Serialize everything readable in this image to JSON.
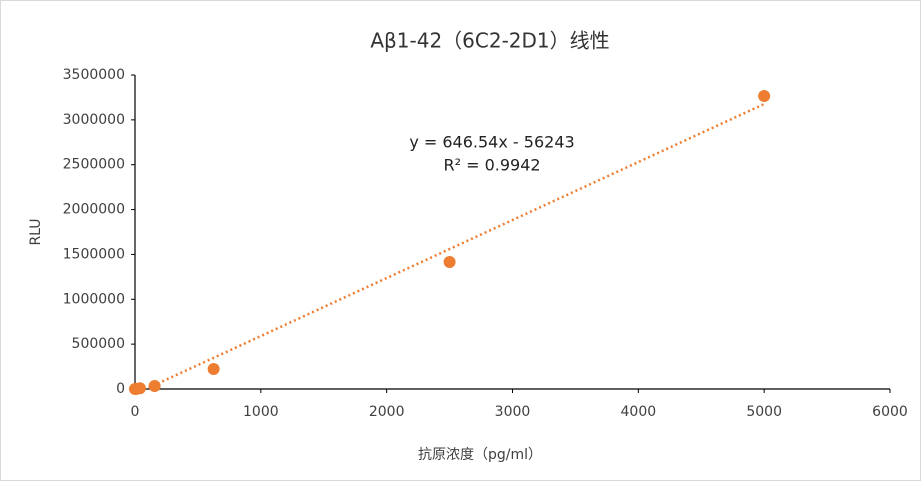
{
  "chart_data": {
    "type": "scatter",
    "title": "Aβ1-42（6C2-2D1）线性",
    "x_label": "抗原浓度（pg/ml）",
    "y_label": "RLU",
    "series": [
      {
        "name": "RLU",
        "color": "#ed7d31",
        "x": [
          0,
          9.8,
          39,
          156,
          625,
          2500,
          5000
        ],
        "values": [
          0,
          2000,
          8000,
          33000,
          223000,
          1416000,
          3266000
        ]
      }
    ],
    "xlim": [
      0,
      6000
    ],
    "xticks": [
      0,
      1000,
      2000,
      3000,
      4000,
      5000,
      6000
    ],
    "ylim": [
      0,
      3500000
    ],
    "yticks": [
      0,
      500000,
      1000000,
      1500000,
      2000000,
      2500000,
      3000000,
      3500000
    ],
    "grid": false,
    "trendline": {
      "slope": 646.54,
      "intercept": -56243,
      "equation": "y = 646.54x - 56243",
      "r2": "R² = 0.9942"
    }
  }
}
